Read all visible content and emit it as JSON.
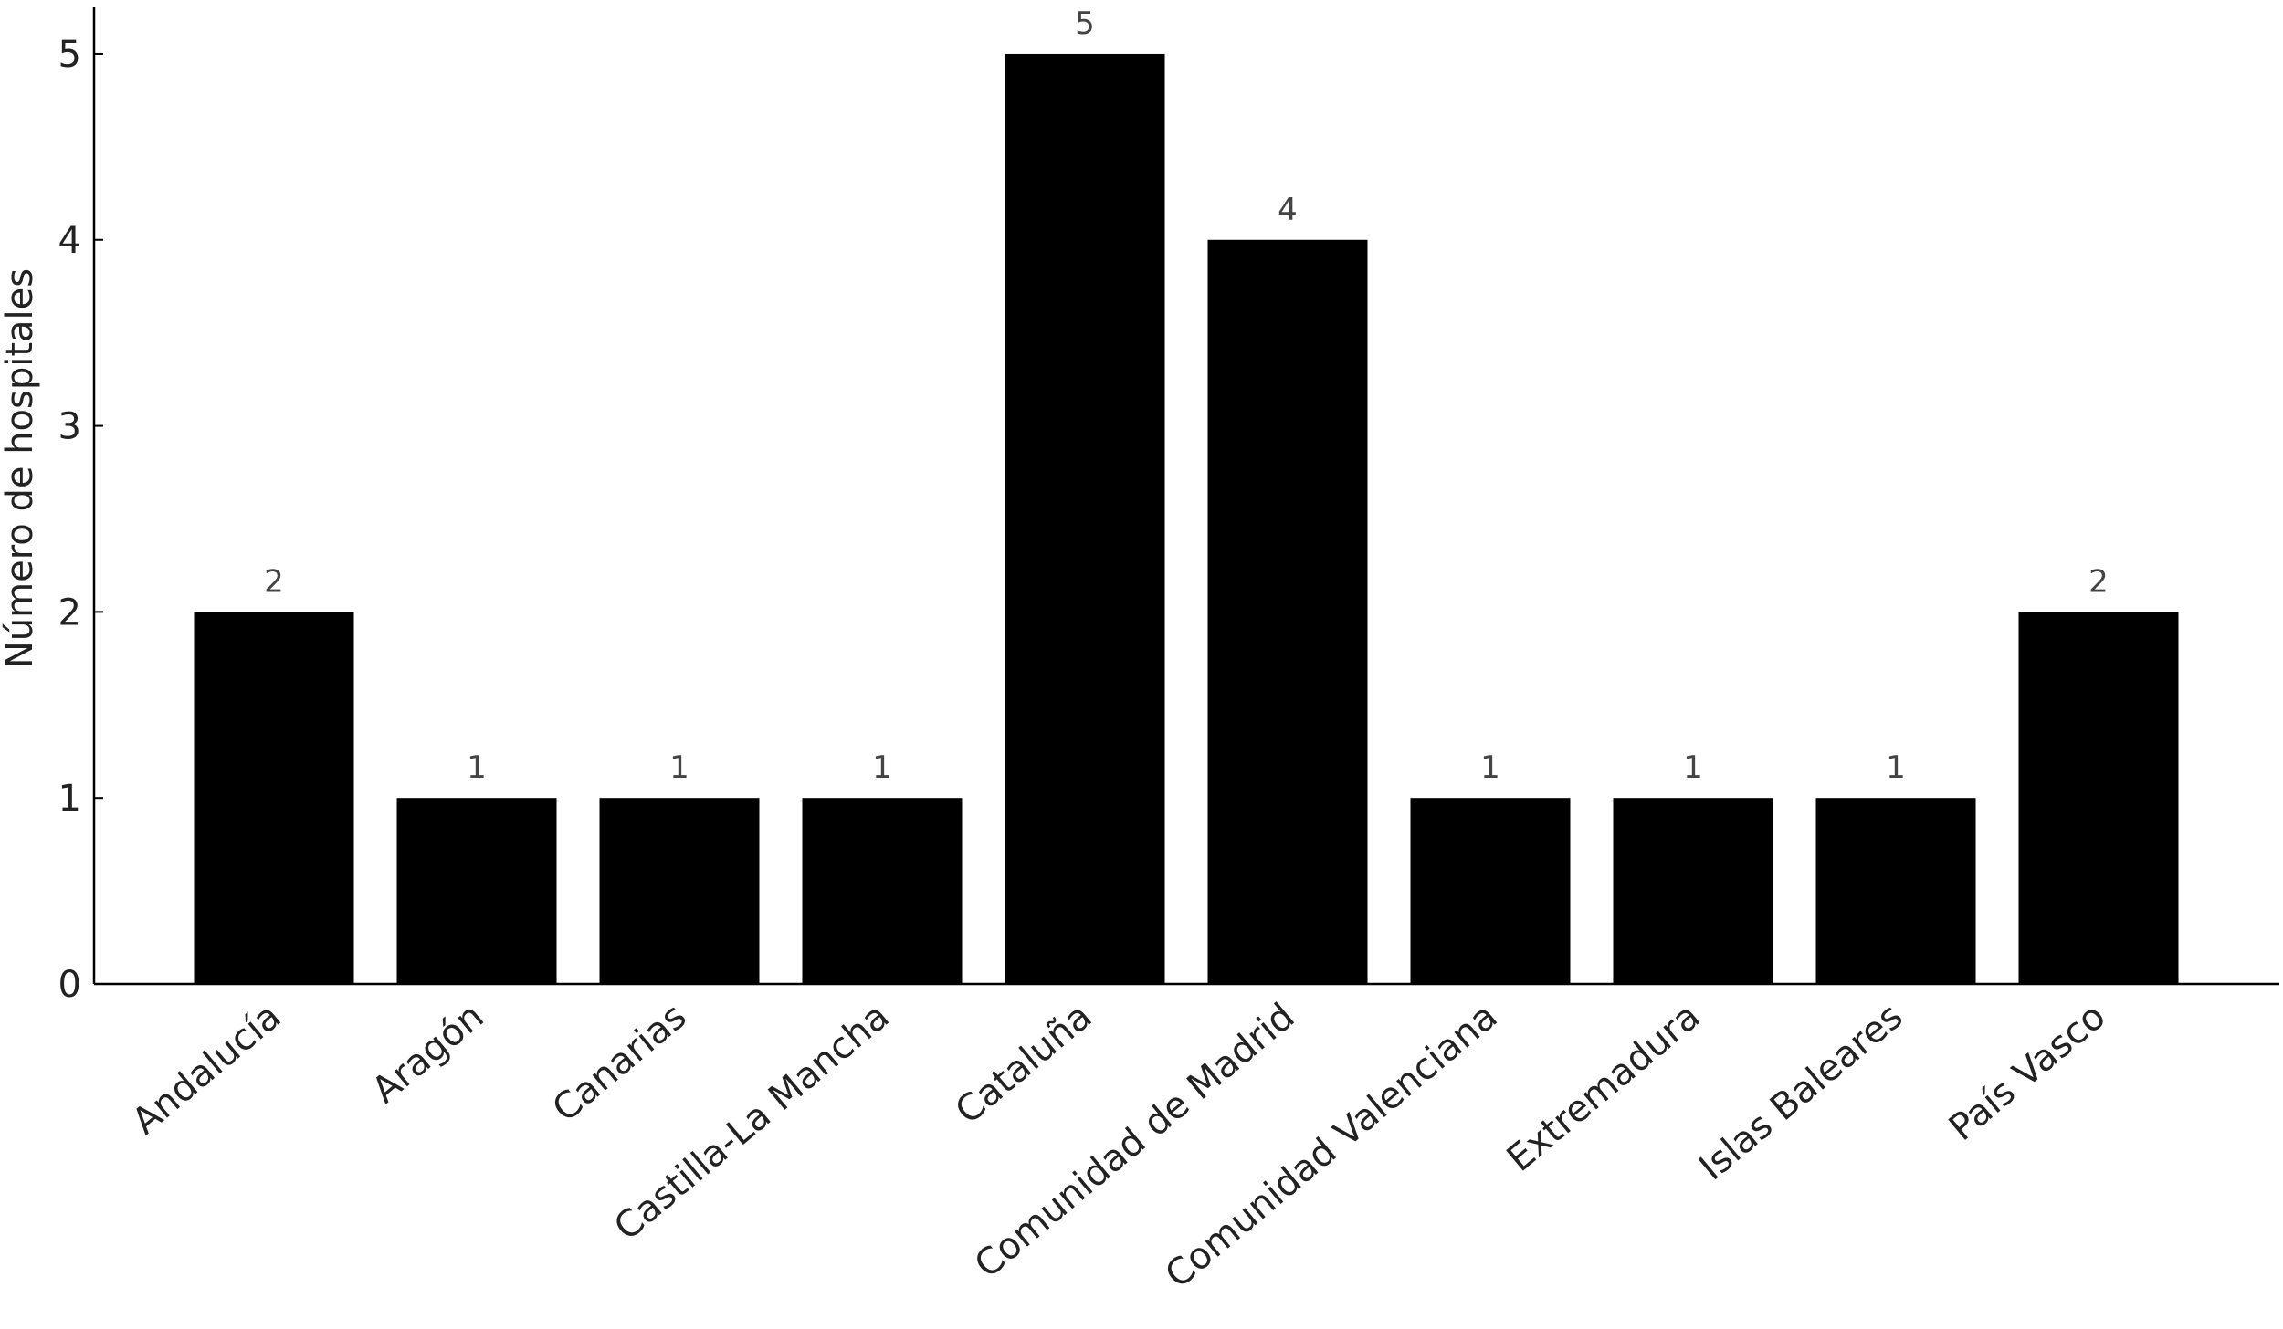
{
  "chart_data": {
    "type": "bar",
    "title": "",
    "xlabel": "",
    "ylabel": "Número de hospitales",
    "categories": [
      "Andalucía",
      "Aragón",
      "Canarias",
      "Castilla-La Mancha",
      "Cataluña",
      "Comunidad de Madrid",
      "Comunidad Valenciana",
      "Extremadura",
      "Islas Baleares",
      "País Vasco"
    ],
    "values": [
      2,
      1,
      1,
      1,
      5,
      4,
      1,
      1,
      1,
      2
    ],
    "data_labels": [
      "2",
      "1",
      "1",
      "1",
      "5",
      "4",
      "1",
      "1",
      "1",
      "2"
    ],
    "ylim": [
      0,
      5.25
    ],
    "yticks": [
      "0",
      "1",
      "2",
      "3",
      "4",
      "5"
    ],
    "grid": false,
    "legend": "none",
    "bar_color": "#000000"
  }
}
